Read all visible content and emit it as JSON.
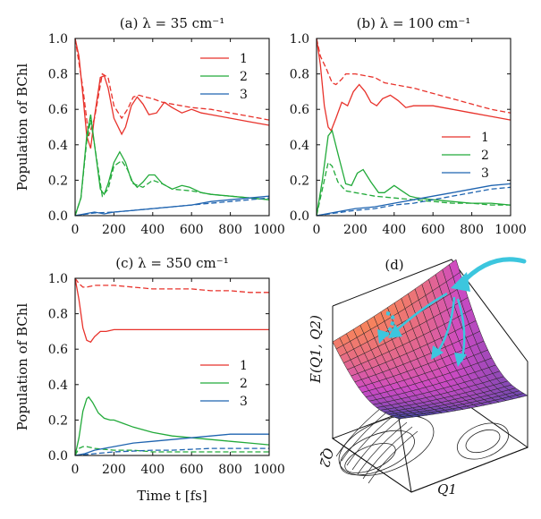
{
  "figure": {
    "ylabel": "Population of BChl",
    "xlabel": "Time t [fs]",
    "panel_d_label": "(d)",
    "surface_zlabel": "E(Q1, Q2)",
    "surface_q1": "Q1",
    "surface_q2": "Q2"
  },
  "colors": {
    "s1": "#e8322b",
    "s2": "#22aa3a",
    "s3": "#1f64b0",
    "arrow": "#3cc6de"
  },
  "chart_data": [
    {
      "type": "line",
      "title": "(a) λ = 35 cm⁻¹",
      "xlabel": "Time t [fs]",
      "ylabel": "Population of BChl",
      "xlim": [
        0,
        1000
      ],
      "ylim": [
        0,
        1
      ],
      "xticks": [
        "0",
        "200",
        "400",
        "600",
        "800",
        "1000"
      ],
      "yticks": [
        "0.0",
        "0.2",
        "0.4",
        "0.6",
        "0.8",
        "1.0"
      ],
      "legend_position": "top-right",
      "series": [
        {
          "name": "1",
          "style": "solid",
          "x": [
            0,
            20,
            40,
            60,
            80,
            100,
            130,
            150,
            170,
            200,
            240,
            260,
            290,
            320,
            350,
            380,
            420,
            460,
            500,
            550,
            600,
            650,
            700,
            800,
            900,
            1000
          ],
          "y": [
            1.0,
            0.9,
            0.68,
            0.45,
            0.38,
            0.56,
            0.78,
            0.79,
            0.72,
            0.55,
            0.46,
            0.5,
            0.62,
            0.67,
            0.63,
            0.57,
            0.58,
            0.64,
            0.61,
            0.58,
            0.6,
            0.58,
            0.57,
            0.55,
            0.53,
            0.51
          ]
        },
        {
          "name": "1",
          "style": "dashed",
          "x": [
            0,
            40,
            70,
            100,
            140,
            170,
            200,
            240,
            270,
            300,
            330,
            360,
            400,
            450,
            500,
            600,
            700,
            800,
            900,
            1000
          ],
          "y": [
            1.0,
            0.72,
            0.45,
            0.55,
            0.8,
            0.78,
            0.62,
            0.55,
            0.6,
            0.67,
            0.68,
            0.67,
            0.66,
            0.64,
            0.63,
            0.61,
            0.6,
            0.58,
            0.56,
            0.54
          ]
        },
        {
          "name": "2",
          "style": "solid",
          "x": [
            0,
            30,
            60,
            80,
            100,
            130,
            150,
            170,
            200,
            230,
            260,
            290,
            320,
            350,
            380,
            410,
            450,
            500,
            550,
            590,
            650,
            700,
            800,
            900,
            1000
          ],
          "y": [
            0,
            0.1,
            0.45,
            0.57,
            0.4,
            0.15,
            0.12,
            0.18,
            0.3,
            0.36,
            0.3,
            0.2,
            0.16,
            0.19,
            0.23,
            0.23,
            0.18,
            0.15,
            0.17,
            0.16,
            0.13,
            0.12,
            0.11,
            0.1,
            0.09
          ]
        },
        {
          "name": "2",
          "style": "dashed",
          "x": [
            0,
            30,
            60,
            80,
            100,
            140,
            170,
            200,
            240,
            270,
            300,
            350,
            400,
            450,
            500,
            600,
            700,
            800,
            900,
            1000
          ],
          "y": [
            0,
            0.1,
            0.42,
            0.54,
            0.4,
            0.11,
            0.15,
            0.28,
            0.31,
            0.26,
            0.18,
            0.16,
            0.2,
            0.18,
            0.15,
            0.14,
            0.12,
            0.11,
            0.1,
            0.09
          ]
        },
        {
          "name": "3",
          "style": "solid",
          "x": [
            0,
            50,
            100,
            150,
            200,
            300,
            400,
            500,
            600,
            700,
            800,
            900,
            1000
          ],
          "y": [
            0,
            0.01,
            0.02,
            0.01,
            0.02,
            0.03,
            0.04,
            0.05,
            0.06,
            0.08,
            0.09,
            0.1,
            0.11
          ]
        },
        {
          "name": "3",
          "style": "dashed",
          "x": [
            0,
            100,
            200,
            300,
            400,
            500,
            600,
            700,
            800,
            900,
            1000
          ],
          "y": [
            0,
            0.015,
            0.02,
            0.03,
            0.04,
            0.05,
            0.06,
            0.07,
            0.08,
            0.09,
            0.1
          ]
        }
      ]
    },
    {
      "type": "line",
      "title": "(b) λ = 100 cm⁻¹",
      "xlabel": "",
      "ylabel": "",
      "xlim": [
        0,
        1000
      ],
      "ylim": [
        0,
        1
      ],
      "xticks": [
        "0",
        "200",
        "400",
        "600",
        "800",
        "1000"
      ],
      "yticks": [
        "0.0",
        "0.2",
        "0.4",
        "0.6",
        "0.8",
        "1.0"
      ],
      "legend_position": "bottom-right",
      "series": [
        {
          "name": "1",
          "style": "solid",
          "x": [
            0,
            20,
            40,
            60,
            75,
            100,
            130,
            160,
            190,
            220,
            250,
            280,
            310,
            340,
            380,
            420,
            460,
            500,
            600,
            700,
            800,
            900,
            1000
          ],
          "y": [
            1.0,
            0.85,
            0.62,
            0.5,
            0.48,
            0.55,
            0.64,
            0.62,
            0.7,
            0.74,
            0.7,
            0.64,
            0.62,
            0.66,
            0.68,
            0.65,
            0.61,
            0.62,
            0.62,
            0.6,
            0.58,
            0.56,
            0.54
          ]
        },
        {
          "name": "1",
          "style": "dashed",
          "x": [
            0,
            20,
            50,
            80,
            100,
            130,
            150,
            200,
            250,
            300,
            350,
            400,
            500,
            600,
            700,
            800,
            900,
            1000
          ],
          "y": [
            1.0,
            0.9,
            0.83,
            0.75,
            0.74,
            0.77,
            0.8,
            0.8,
            0.79,
            0.78,
            0.75,
            0.74,
            0.72,
            0.69,
            0.66,
            0.63,
            0.6,
            0.58
          ]
        },
        {
          "name": "2",
          "style": "solid",
          "x": [
            0,
            30,
            60,
            80,
            110,
            150,
            180,
            210,
            240,
            280,
            320,
            350,
            400,
            440,
            480,
            520,
            600,
            700,
            800,
            900,
            1000
          ],
          "y": [
            0,
            0.2,
            0.45,
            0.48,
            0.35,
            0.18,
            0.17,
            0.24,
            0.26,
            0.19,
            0.13,
            0.13,
            0.17,
            0.14,
            0.11,
            0.1,
            0.09,
            0.08,
            0.07,
            0.07,
            0.06
          ]
        },
        {
          "name": "2",
          "style": "dashed",
          "x": [
            0,
            30,
            60,
            80,
            110,
            150,
            200,
            250,
            300,
            400,
            500,
            600,
            700,
            800,
            900,
            1000
          ],
          "y": [
            0,
            0.15,
            0.3,
            0.28,
            0.19,
            0.14,
            0.13,
            0.12,
            0.11,
            0.1,
            0.09,
            0.08,
            0.07,
            0.07,
            0.06,
            0.06
          ]
        },
        {
          "name": "3",
          "style": "solid",
          "x": [
            0,
            100,
            200,
            300,
            400,
            500,
            600,
            700,
            800,
            900,
            1000
          ],
          "y": [
            0,
            0.02,
            0.04,
            0.05,
            0.07,
            0.09,
            0.11,
            0.13,
            0.15,
            0.17,
            0.18
          ]
        },
        {
          "name": "3",
          "style": "dashed",
          "x": [
            0,
            100,
            200,
            300,
            400,
            500,
            600,
            700,
            800,
            900,
            1000
          ],
          "y": [
            0,
            0.015,
            0.03,
            0.04,
            0.06,
            0.07,
            0.09,
            0.11,
            0.13,
            0.15,
            0.16
          ]
        }
      ]
    },
    {
      "type": "line",
      "title": "(c) λ = 350 cm⁻¹",
      "xlabel": "Time t [fs]",
      "ylabel": "Population of BChl",
      "xlim": [
        0,
        1000
      ],
      "ylim": [
        0,
        1
      ],
      "xticks": [
        "0",
        "200",
        "400",
        "600",
        "800",
        "1000"
      ],
      "yticks": [
        "0.0",
        "0.2",
        "0.4",
        "0.6",
        "0.8",
        "1.0"
      ],
      "legend_position": "center-right",
      "series": [
        {
          "name": "1",
          "style": "solid",
          "x": [
            0,
            20,
            40,
            60,
            80,
            100,
            130,
            160,
            200,
            300,
            400,
            600,
            800,
            1000
          ],
          "y": [
            1.0,
            0.88,
            0.72,
            0.65,
            0.64,
            0.67,
            0.7,
            0.7,
            0.71,
            0.71,
            0.71,
            0.71,
            0.71,
            0.71
          ]
        },
        {
          "name": "1",
          "style": "dashed",
          "x": [
            0,
            20,
            40,
            60,
            100,
            200,
            300,
            400,
            500,
            600,
            700,
            800,
            900,
            1000
          ],
          "y": [
            1.0,
            0.97,
            0.95,
            0.95,
            0.96,
            0.96,
            0.95,
            0.94,
            0.94,
            0.94,
            0.93,
            0.93,
            0.92,
            0.92
          ]
        },
        {
          "name": "2",
          "style": "solid",
          "x": [
            0,
            20,
            40,
            60,
            70,
            90,
            120,
            150,
            180,
            200,
            250,
            300,
            400,
            500,
            600,
            700,
            800,
            900,
            1000
          ],
          "y": [
            0,
            0.1,
            0.25,
            0.32,
            0.33,
            0.3,
            0.24,
            0.21,
            0.2,
            0.2,
            0.18,
            0.16,
            0.13,
            0.11,
            0.1,
            0.09,
            0.08,
            0.07,
            0.06
          ]
        },
        {
          "name": "2",
          "style": "dashed",
          "x": [
            0,
            20,
            40,
            60,
            100,
            200,
            300,
            400,
            500,
            600,
            800,
            1000
          ],
          "y": [
            0,
            0.04,
            0.05,
            0.05,
            0.04,
            0.03,
            0.03,
            0.02,
            0.02,
            0.02,
            0.02,
            0.02
          ]
        },
        {
          "name": "3",
          "style": "solid",
          "x": [
            0,
            50,
            100,
            200,
            300,
            400,
            500,
            600,
            700,
            800,
            900,
            1000
          ],
          "y": [
            0,
            0.01,
            0.03,
            0.05,
            0.07,
            0.08,
            0.09,
            0.1,
            0.11,
            0.12,
            0.12,
            0.12
          ]
        },
        {
          "name": "3",
          "style": "dashed",
          "x": [
            0,
            100,
            200,
            300,
            400,
            500,
            600,
            700,
            800,
            900,
            1000
          ],
          "y": [
            0,
            0.01,
            0.02,
            0.025,
            0.03,
            0.03,
            0.035,
            0.04,
            0.04,
            0.04,
            0.04
          ]
        }
      ]
    }
  ]
}
